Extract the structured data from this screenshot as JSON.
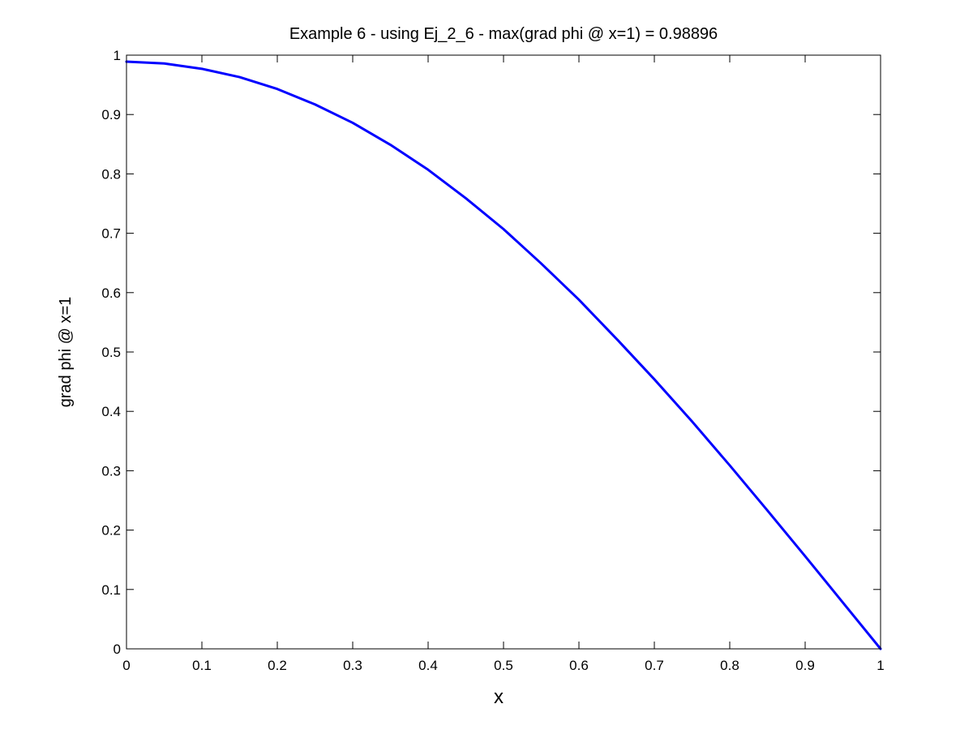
{
  "chart_data": {
    "type": "line",
    "title": "Example 6 - using Ej_2_6 - max(grad phi @ x=1) = 0.98896",
    "xlabel": "x",
    "ylabel": "grad phi @ x=1",
    "xlim": [
      0,
      1
    ],
    "ylim": [
      0,
      1
    ],
    "xticks": [
      "0",
      "0.1",
      "0.2",
      "0.3",
      "0.4",
      "0.5",
      "0.6",
      "0.7",
      "0.8",
      "0.9",
      "1"
    ],
    "yticks": [
      "0",
      "0.1",
      "0.2",
      "0.3",
      "0.4",
      "0.5",
      "0.6",
      "0.7",
      "0.8",
      "0.9",
      "1"
    ],
    "grid": false,
    "line_color": "#0000ff",
    "series": [
      {
        "x": [
          0,
          0.05,
          0.1,
          0.15,
          0.2,
          0.25,
          0.3,
          0.35,
          0.4,
          0.45,
          0.5,
          0.55,
          0.6,
          0.65,
          0.7,
          0.75,
          0.8,
          0.85,
          0.9,
          0.95,
          1.0
        ],
        "y": [
          0.989,
          0.986,
          0.977,
          0.963,
          0.943,
          0.917,
          0.886,
          0.849,
          0.807,
          0.759,
          0.707,
          0.649,
          0.588,
          0.522,
          0.454,
          0.383,
          0.309,
          0.233,
          0.156,
          0.078,
          0.0
        ]
      }
    ]
  }
}
